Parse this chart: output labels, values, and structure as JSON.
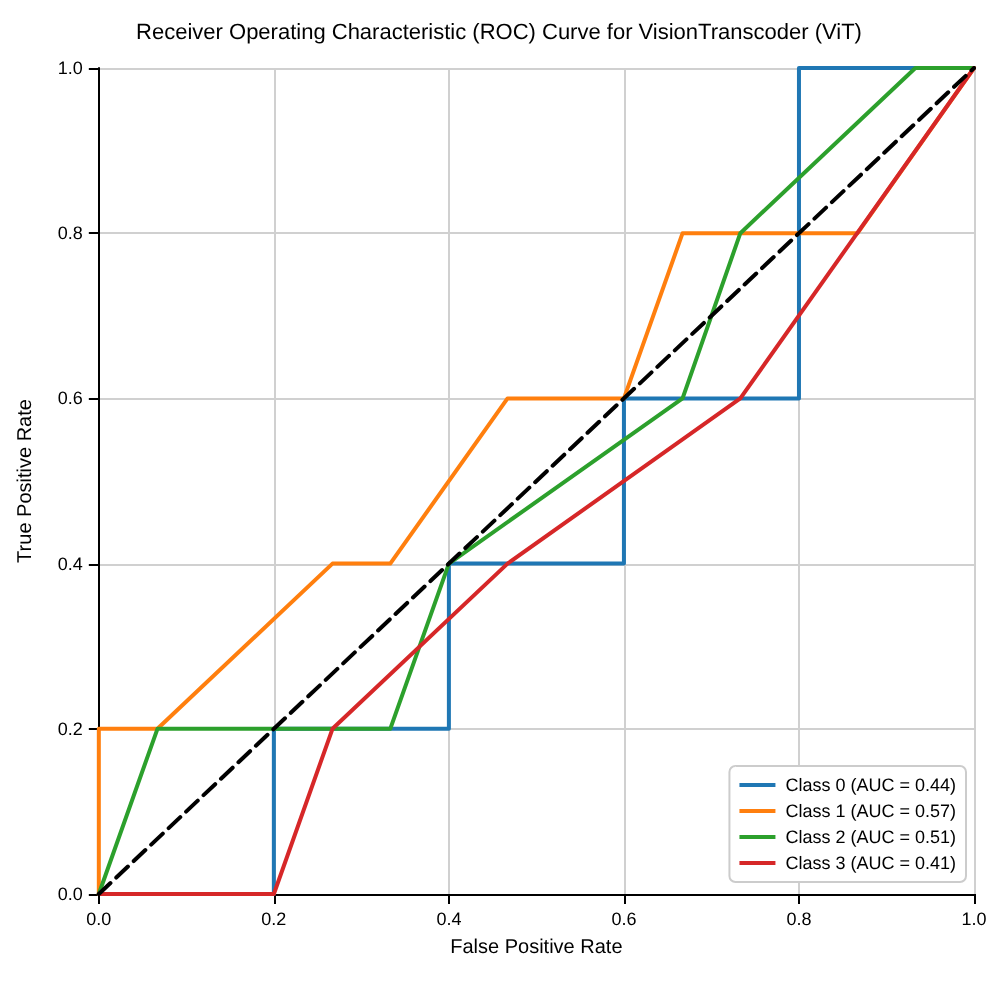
{
  "chart_data": {
    "type": "line",
    "title": "Receiver Operating Characteristic (ROC) Curve for VisionTranscoder (ViT)",
    "xlabel": "False Positive Rate",
    "ylabel": "True Positive Rate",
    "series": [
      {
        "name": "Class 0 (AUC = 0.44)",
        "color": "#1f77b4",
        "x": [
          0,
          0.2,
          0.2,
          0.4,
          0.4,
          0.6,
          0.6,
          0.8,
          0.8,
          1
        ],
        "values": [
          0,
          0,
          0.2,
          0.2,
          0.4,
          0.4,
          0.6,
          0.6,
          1,
          1
        ]
      },
      {
        "name": "Class 1 (AUC = 0.57)",
        "color": "#ff7f0e",
        "x": [
          0,
          0,
          0.067,
          0.267,
          0.333,
          0.467,
          0.6,
          0.667,
          0.867,
          1
        ],
        "values": [
          0,
          0.2,
          0.2,
          0.4,
          0.4,
          0.6,
          0.6,
          0.8,
          0.8,
          1
        ]
      },
      {
        "name": "Class 2 (AUC = 0.51)",
        "color": "#2ca02c",
        "x": [
          0,
          0.067,
          0.333,
          0.4,
          0.667,
          0.733,
          0.933,
          1
        ],
        "values": [
          0,
          0.2,
          0.2,
          0.4,
          0.6,
          0.8,
          1,
          1
        ]
      },
      {
        "name": "Class 3 (AUC = 0.41)",
        "color": "#d62728",
        "x": [
          0,
          0.2,
          0.267,
          0.467,
          0.733,
          1
        ],
        "values": [
          0,
          0,
          0.2,
          0.4,
          0.6,
          1
        ]
      },
      {
        "color": "#000000",
        "line_style": "dashed",
        "x": [
          0,
          1
        ],
        "values": [
          0,
          1
        ]
      }
    ],
    "xlim": [
      0,
      1
    ],
    "ylim": [
      0,
      1
    ],
    "xticks": [
      {
        "value": 0,
        "label": "0.0"
      },
      0.2,
      0.4,
      0.6,
      0.8,
      {
        "value": 1,
        "label": "1.0"
      }
    ],
    "yticks": [
      {
        "value": 0,
        "label": "0.0"
      },
      0.2,
      0.4,
      0.6,
      0.8,
      {
        "value": 1,
        "label": "1.0"
      }
    ],
    "grid": true,
    "legend": "bottom right",
    "marker": "none",
    "line_style": "solid"
  }
}
